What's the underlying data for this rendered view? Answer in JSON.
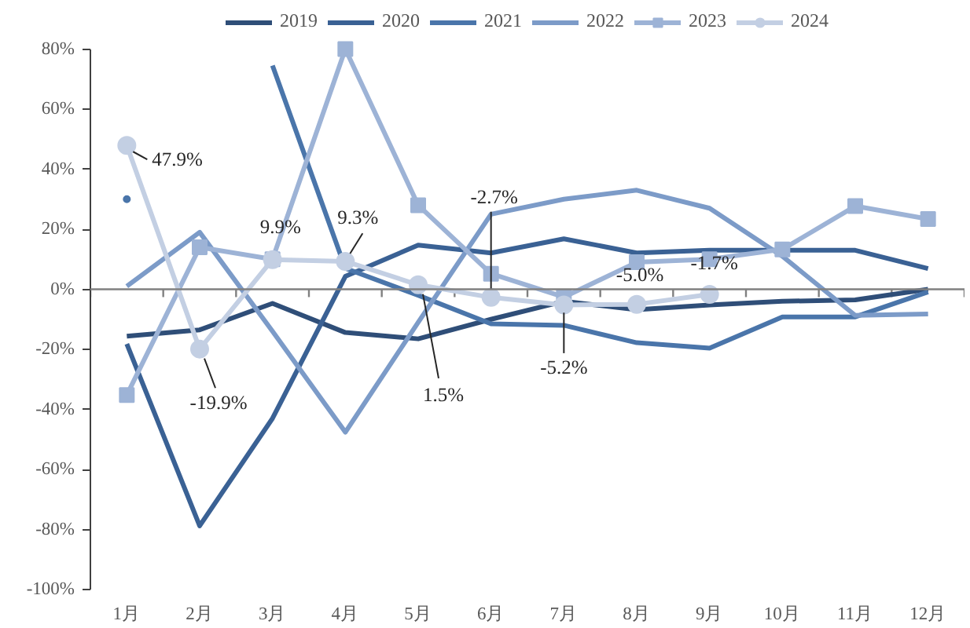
{
  "chart_data": {
    "type": "line",
    "categories": [
      "1月",
      "2月",
      "3月",
      "4月",
      "5月",
      "6月",
      "7月",
      "8月",
      "9月",
      "10月",
      "11月",
      "12月"
    ],
    "ylim": [
      -100,
      80
    ],
    "yticks": [
      {
        "value": -100,
        "label": "-100%"
      },
      {
        "value": -80,
        "label": "-80%"
      },
      {
        "value": -60,
        "label": "-60%"
      },
      {
        "value": -40,
        "label": "-40%"
      },
      {
        "value": -20,
        "label": "-20%"
      },
      {
        "value": 0,
        "label": "0%"
      },
      {
        "value": 20,
        "label": "20%"
      },
      {
        "value": 40,
        "label": "40%"
      },
      {
        "value": 60,
        "label": "60%"
      },
      {
        "value": 80,
        "label": "80%"
      }
    ],
    "legend": "top",
    "grid": false,
    "ref_lines": [
      {
        "axis": "y",
        "value": 0,
        "color": "#808080"
      }
    ],
    "series": [
      {
        "name": "2019",
        "color": "#2f4e78",
        "values": [
          -15.6,
          -13.5,
          -4.7,
          -14.4,
          -16.5,
          -10,
          -4,
          -6.8,
          -5.2,
          -4,
          -3.5,
          0
        ]
      },
      {
        "name": "2020",
        "color": "#3a6194",
        "values": [
          -18.2,
          -78.8,
          -43,
          4.3,
          14.7,
          12.1,
          16.8,
          12.1,
          13,
          13,
          13,
          6.9
        ]
      },
      {
        "name": "2021",
        "color": "#4a75aa",
        "values": [
          30,
          null,
          74.5,
          7,
          -2,
          -11.5,
          -12,
          -17.8,
          -19.6,
          -9.2,
          -9.2,
          -0.9
        ]
      },
      {
        "name": "2022",
        "color": "#7c9bc8",
        "values": [
          1,
          19,
          -14,
          -47.6,
          -11,
          25,
          30,
          33,
          27,
          11,
          -8.7,
          -8.2
        ]
      },
      {
        "name": "2023",
        "color": "#9db3d6",
        "marker": "square",
        "values": [
          -35.2,
          14,
          10,
          80,
          28,
          5.2,
          -2.6,
          9,
          10,
          13.3,
          27.7,
          23.4
        ]
      },
      {
        "name": "2024",
        "color": "#c3cfe3",
        "marker": "circle",
        "values": [
          47.9,
          -19.9,
          9.9,
          9.3,
          1.5,
          -2.7,
          -5.2,
          -5.0,
          -1.7,
          null,
          null,
          null
        ],
        "value_labels": [
          "47.9%",
          "-19.9%",
          "9.9%",
          "9.3%",
          "1.5%",
          "-2.7%",
          "-5.2%",
          "-5.0%",
          "-1.7%",
          null,
          null,
          null
        ]
      }
    ]
  }
}
